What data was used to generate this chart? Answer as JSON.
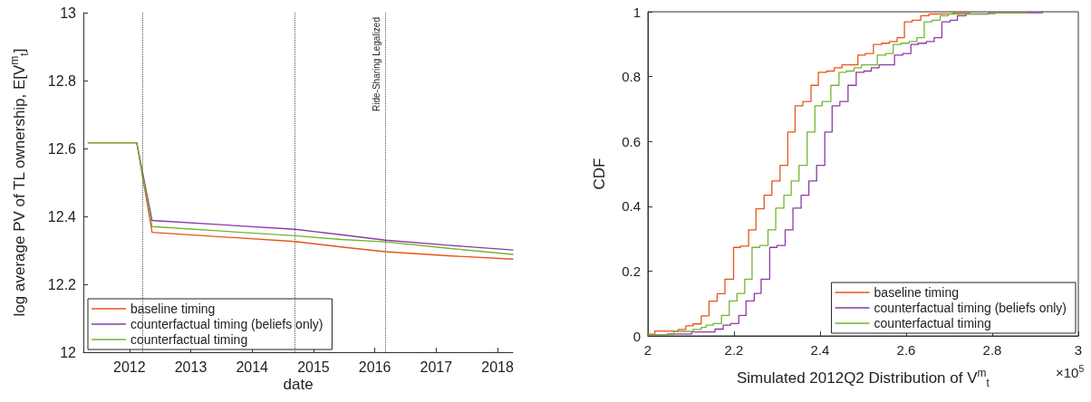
{
  "chart_data": [
    {
      "type": "line",
      "xlabel": "date",
      "ylabel": "log average PV of TL ownership, E[V$^{m}$$_{t}$]",
      "x": [
        2011.33,
        2012.12,
        2012.37,
        2014.7,
        2015.45,
        2016.17,
        2017.2,
        2018.25
      ],
      "series": [
        {
          "name": "baseline timing",
          "color": "#e8541a",
          "values": [
            12.617,
            12.617,
            12.353,
            12.326,
            12.31,
            12.296,
            12.284,
            12.274
          ]
        },
        {
          "name": "counterfactual timing (beliefs only)",
          "color": "#8c3aa8",
          "values": [
            12.617,
            12.617,
            12.388,
            12.362,
            12.346,
            12.33,
            12.315,
            12.301
          ]
        },
        {
          "name": "counterfactual timing",
          "color": "#72b62e",
          "values": [
            12.617,
            12.617,
            12.37,
            12.343,
            12.332,
            12.325,
            12.306,
            12.288
          ]
        }
      ],
      "xlim": [
        2011.25,
        2018.25
      ],
      "xticks": [
        2012,
        2013,
        2014,
        2015,
        2016,
        2017,
        2018
      ],
      "ylim": [
        12,
        13
      ],
      "yticks": [
        12,
        12.2,
        12.4,
        12.6,
        12.8,
        13
      ],
      "ref_lines": [
        {
          "axis": "x",
          "value": 2012.21,
          "label": null,
          "line_style": "dotted",
          "color": "#555555"
        },
        {
          "axis": "x",
          "value": 2014.7,
          "label": null,
          "line_style": "dotted",
          "color": "#555555"
        },
        {
          "axis": "x",
          "value": 2016.17,
          "label": "Ride-Sharing Legalized",
          "line_style": "dotted",
          "color": "#555555"
        }
      ],
      "legend": "bottom left"
    },
    {
      "type": "step",
      "xlabel": "Simulated 2012Q2 Distribution of V$^{m}$$_{t}$",
      "ylabel": "CDF",
      "series": [
        {
          "name": "baseline timing",
          "color": "#e8541a",
          "x": [
            2.0,
            2.016,
            2.07,
            2.088,
            2.105,
            2.124,
            2.142,
            2.161,
            2.179,
            2.199,
            2.215,
            2.234,
            2.251,
            2.27,
            2.288,
            2.307,
            2.325,
            2.342,
            2.36,
            2.379,
            2.396,
            2.415,
            2.433,
            2.451,
            2.488,
            2.505,
            2.524,
            2.543,
            2.561,
            2.579,
            2.596,
            2.614,
            2.634,
            2.653,
            2.672,
            2.709,
            2.749
          ],
          "values": [
            0.005,
            0.015,
            0.02,
            0.031,
            0.037,
            0.062,
            0.107,
            0.13,
            0.175,
            0.273,
            0.277,
            0.327,
            0.392,
            0.434,
            0.478,
            0.526,
            0.629,
            0.71,
            0.723,
            0.773,
            0.813,
            0.817,
            0.827,
            0.836,
            0.866,
            0.871,
            0.899,
            0.903,
            0.908,
            0.92,
            0.969,
            0.974,
            0.988,
            0.993,
            0.994,
            0.997,
            1.0
          ]
        },
        {
          "name": "counterfactual timing (beliefs only)",
          "color": "#8c3aa8",
          "x": [
            2.0,
            2.046,
            2.102,
            2.156,
            2.175,
            2.192,
            2.211,
            2.228,
            2.247,
            2.263,
            2.283,
            2.3,
            2.319,
            2.337,
            2.356,
            2.374,
            2.392,
            2.411,
            2.428,
            2.446,
            2.465,
            2.484,
            2.502,
            2.519,
            2.537,
            2.573,
            2.592,
            2.611,
            2.628,
            2.647,
            2.665,
            2.683,
            2.702,
            2.719,
            2.739,
            2.791,
            2.917
          ],
          "values": [
            0.003,
            0.006,
            0.012,
            0.021,
            0.033,
            0.038,
            0.063,
            0.108,
            0.131,
            0.175,
            0.273,
            0.279,
            0.327,
            0.394,
            0.434,
            0.478,
            0.526,
            0.629,
            0.71,
            0.723,
            0.773,
            0.813,
            0.817,
            0.827,
            0.836,
            0.866,
            0.871,
            0.899,
            0.903,
            0.908,
            0.92,
            0.969,
            0.974,
            0.988,
            0.993,
            0.997,
            1.0
          ]
        },
        {
          "name": "counterfactual timing",
          "color": "#72b62e",
          "x": [
            2.0,
            2.06,
            2.105,
            2.124,
            2.135,
            2.152,
            2.171,
            2.189,
            2.207,
            2.225,
            2.242,
            2.26,
            2.279,
            2.297,
            2.316,
            2.333,
            2.351,
            2.37,
            2.388,
            2.405,
            2.425,
            2.444,
            2.461,
            2.479,
            2.496,
            2.533,
            2.552,
            2.57,
            2.588,
            2.607,
            2.625,
            2.642,
            2.66,
            2.679,
            2.698,
            2.707,
            2.807,
            2.879
          ],
          "values": [
            0.003,
            0.014,
            0.02,
            0.026,
            0.033,
            0.038,
            0.063,
            0.108,
            0.131,
            0.175,
            0.273,
            0.279,
            0.327,
            0.394,
            0.434,
            0.478,
            0.526,
            0.629,
            0.71,
            0.723,
            0.773,
            0.813,
            0.817,
            0.827,
            0.836,
            0.866,
            0.871,
            0.899,
            0.903,
            0.908,
            0.92,
            0.969,
            0.974,
            0.988,
            0.993,
            0.994,
            0.997,
            1.0
          ]
        }
      ],
      "xlim": [
        2,
        3
      ],
      "xticks": [
        2,
        2.2,
        2.4,
        2.6,
        2.8,
        3
      ],
      "ylim": [
        0,
        1
      ],
      "yticks": [
        0,
        0.2,
        0.4,
        0.6,
        0.8,
        1
      ],
      "annotations": [
        "×10$^{5}$"
      ],
      "legend": "bottom right"
    }
  ]
}
